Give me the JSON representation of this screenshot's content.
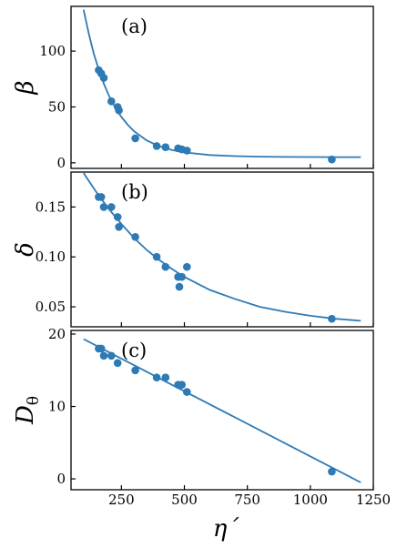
{
  "colors": {
    "series": "#2e7ab5",
    "axis": "#000000"
  },
  "chart_data": [
    {
      "type": "scatter",
      "panel_label": "(a)",
      "ylabel": "β",
      "xlabel": "",
      "xlim": [
        50,
        1250
      ],
      "ylim": [
        -5,
        140
      ],
      "yticks": [
        0,
        50,
        100
      ],
      "xticks": [
        250,
        500,
        750,
        1000,
        1250
      ],
      "x": [
        160,
        170,
        180,
        210,
        235,
        240,
        305,
        390,
        425,
        475,
        490,
        510,
        1085
      ],
      "y": [
        83,
        80,
        76,
        55,
        50,
        47,
        22,
        15,
        14,
        13,
        12,
        11,
        3
      ],
      "fit": {
        "x": [
          100,
          120,
          140,
          160,
          180,
          200,
          225,
          250,
          275,
          300,
          350,
          400,
          450,
          500,
          600,
          700,
          800,
          900,
          1000,
          1100,
          1200
        ],
        "y": [
          137,
          116,
          98,
          83.5,
          70.8,
          60.3,
          49.6,
          41,
          34,
          28.3,
          20.1,
          14.8,
          11.5,
          9.3,
          7,
          6,
          5.5,
          5.3,
          5.2,
          5.1,
          5.1
        ]
      },
      "grid": false
    },
    {
      "type": "scatter",
      "panel_label": "(b)",
      "ylabel": "δ",
      "xlabel": "",
      "xlim": [
        50,
        1250
      ],
      "ylim": [
        0.03,
        0.185
      ],
      "yticks": [
        "0.05",
        "0.10",
        "0.15"
      ],
      "ytick_values": [
        0.05,
        0.1,
        0.15
      ],
      "xticks": [
        250,
        500,
        750,
        1000,
        1250
      ],
      "x": [
        160,
        170,
        180,
        210,
        235,
        240,
        305,
        390,
        425,
        475,
        480,
        490,
        510,
        1085
      ],
      "y": [
        0.16,
        0.16,
        0.15,
        0.15,
        0.14,
        0.13,
        0.12,
        0.1,
        0.09,
        0.08,
        0.07,
        0.08,
        0.09,
        0.038
      ],
      "fit": {
        "x": [
          100,
          150,
          200,
          250,
          300,
          350,
          400,
          450,
          500,
          600,
          700,
          800,
          900,
          1000,
          1100,
          1200
        ],
        "y": [
          0.184,
          0.165,
          0.148,
          0.133,
          0.119,
          0.107,
          0.097,
          0.088,
          0.08,
          0.067,
          0.058,
          0.05,
          0.045,
          0.041,
          0.038,
          0.036
        ]
      },
      "grid": false
    },
    {
      "type": "scatter",
      "panel_label": "(c)",
      "ylabel": "D",
      "ylabel_sub": "θ",
      "xlabel": "η´",
      "xlim": [
        50,
        1250
      ],
      "ylim": [
        -1.5,
        20.5
      ],
      "yticks": [
        0,
        10,
        20
      ],
      "xticks": [
        250,
        500,
        750,
        1000,
        1250
      ],
      "x": [
        160,
        170,
        180,
        210,
        235,
        305,
        390,
        425,
        475,
        490,
        510,
        1085
      ],
      "y": [
        18,
        18,
        17,
        17,
        16,
        15,
        14,
        14,
        13,
        13,
        12,
        1
      ],
      "fit": {
        "x": [
          100,
          1200
        ],
        "y": [
          19.3,
          -0.5
        ]
      },
      "grid": false
    }
  ]
}
